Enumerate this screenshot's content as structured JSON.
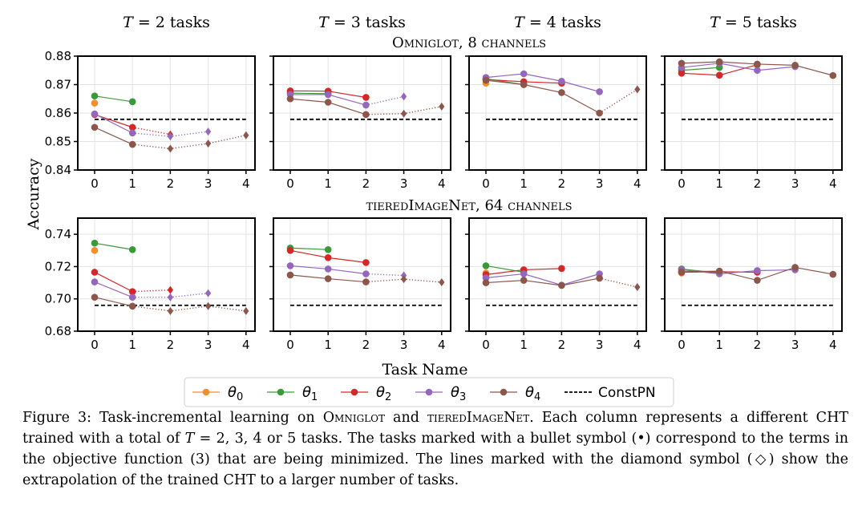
{
  "column_titles": [
    {
      "var": "T",
      "eq": " = ",
      "num": "2",
      "unit": " tasks"
    },
    {
      "var": "T",
      "eq": " = ",
      "num": "3",
      "unit": " tasks"
    },
    {
      "var": "T",
      "eq": " = ",
      "num": "4",
      "unit": " tasks"
    },
    {
      "var": "T",
      "eq": " = ",
      "num": "5",
      "unit": " tasks"
    }
  ],
  "row_titles": [
    "Omniglot, 8 channels",
    "tieredImageNet, 64 channels"
  ],
  "xlabel": "Task Name",
  "ylabel": "Accuracy",
  "legend": [
    {
      "label": "θ0",
      "base": "θ",
      "sub": "0",
      "color": "#f28e2b"
    },
    {
      "label": "θ1",
      "base": "θ",
      "sub": "1",
      "color": "#3a9a3a"
    },
    {
      "label": "θ2",
      "base": "θ",
      "sub": "2",
      "color": "#d62728"
    },
    {
      "label": "θ3",
      "base": "θ",
      "sub": "3",
      "color": "#9467bd"
    },
    {
      "label": "θ4",
      "base": "θ",
      "sub": "4",
      "color": "#8c564b"
    },
    {
      "label": "ConstPN",
      "color": "#000000"
    }
  ],
  "chart_data": [
    {
      "type": "line",
      "row": 0,
      "ylim": [
        0.84,
        0.88
      ],
      "yticks": [
        "0.84",
        "0.85",
        "0.86",
        "0.87",
        "0.88"
      ],
      "xticks": [
        "0",
        "1",
        "2",
        "3",
        "4"
      ],
      "baseline": 0.8578,
      "panels": [
        {
          "T": 2,
          "series": [
            {
              "name": "θ0",
              "values": [
                0.8635,
                null,
                null,
                null,
                null
              ]
            },
            {
              "name": "θ1",
              "values": [
                0.866,
                0.864,
                null,
                null,
                null
              ]
            },
            {
              "name": "θ2",
              "values": [
                0.8595,
                0.855,
                0.8525,
                null,
                null
              ]
            },
            {
              "name": "θ3",
              "values": [
                0.8597,
                0.853,
                0.8518,
                0.8535,
                null
              ]
            },
            {
              "name": "θ4",
              "values": [
                0.855,
                0.849,
                0.8475,
                0.8493,
                0.8522
              ]
            }
          ]
        },
        {
          "T": 3,
          "series": [
            {
              "name": "θ0",
              "values": [
                0.8675,
                null,
                null,
                null,
                null
              ]
            },
            {
              "name": "θ1",
              "values": [
                0.867,
                0.8668,
                null,
                null,
                null
              ]
            },
            {
              "name": "θ2",
              "values": [
                0.8678,
                0.8677,
                0.8655,
                null,
                null
              ]
            },
            {
              "name": "θ3",
              "values": [
                0.8665,
                0.8665,
                0.8628,
                0.8658,
                null
              ]
            },
            {
              "name": "θ4",
              "values": [
                0.865,
                0.8638,
                0.8595,
                0.8598,
                0.8623
              ]
            }
          ]
        },
        {
          "T": 4,
          "series": [
            {
              "name": "θ0",
              "values": [
                0.8705,
                null,
                null,
                null,
                null
              ]
            },
            {
              "name": "θ1",
              "values": [
                0.872,
                0.87,
                null,
                null,
                null
              ]
            },
            {
              "name": "θ2",
              "values": [
                0.8718,
                0.871,
                0.8705,
                null,
                null
              ]
            },
            {
              "name": "θ3",
              "values": [
                0.8725,
                0.8738,
                0.8712,
                0.8675,
                null
              ]
            },
            {
              "name": "θ4",
              "values": [
                0.8715,
                0.87,
                0.8672,
                0.86,
                0.8683
              ]
            }
          ]
        },
        {
          "T": 5,
          "series": [
            {
              "name": "θ0",
              "values": [
                0.8755,
                null,
                null,
                null,
                null
              ]
            },
            {
              "name": "θ1",
              "values": [
                0.875,
                0.876,
                null,
                null,
                null
              ]
            },
            {
              "name": "θ2",
              "values": [
                0.874,
                0.8733,
                0.877,
                null,
                null
              ]
            },
            {
              "name": "θ3",
              "values": [
                0.876,
                0.8775,
                0.875,
                0.8763,
                null
              ]
            },
            {
              "name": "θ4",
              "values": [
                0.8775,
                0.878,
                0.8772,
                0.8768,
                0.8732
              ]
            }
          ]
        }
      ]
    },
    {
      "type": "line",
      "row": 1,
      "ylim": [
        0.68,
        0.75
      ],
      "yticks": [
        "0.68",
        "0.70",
        "0.72",
        "0.74"
      ],
      "xticks": [
        "0",
        "1",
        "2",
        "3",
        "4"
      ],
      "baseline": 0.696,
      "panels": [
        {
          "T": 2,
          "series": [
            {
              "name": "θ0",
              "values": [
                0.73,
                null,
                null,
                null,
                null
              ]
            },
            {
              "name": "θ1",
              "values": [
                0.7345,
                0.7305,
                null,
                null,
                null
              ]
            },
            {
              "name": "θ2",
              "values": [
                0.7165,
                0.7045,
                0.7055,
                null,
                null
              ]
            },
            {
              "name": "θ3",
              "values": [
                0.7105,
                0.701,
                0.701,
                0.7035,
                null
              ]
            },
            {
              "name": "θ4",
              "values": [
                0.701,
                0.6955,
                0.6925,
                0.6955,
                0.6925
              ]
            }
          ]
        },
        {
          "T": 3,
          "series": [
            {
              "name": "θ0",
              "values": [
                0.7305,
                null,
                null,
                null,
                null
              ]
            },
            {
              "name": "θ1",
              "values": [
                0.7315,
                0.7305,
                null,
                null,
                null
              ]
            },
            {
              "name": "θ2",
              "values": [
                0.73,
                0.7255,
                0.7225,
                null,
                null
              ]
            },
            {
              "name": "θ3",
              "values": [
                0.7205,
                0.7185,
                0.7155,
                0.7145,
                null
              ]
            },
            {
              "name": "θ4",
              "values": [
                0.7148,
                0.7125,
                0.7105,
                0.7122,
                0.7103
              ]
            }
          ]
        },
        {
          "T": 4,
          "series": [
            {
              "name": "θ0",
              "values": [
                0.716,
                null,
                null,
                null,
                null
              ]
            },
            {
              "name": "θ1",
              "values": [
                0.7205,
                0.7165,
                null,
                null,
                null
              ]
            },
            {
              "name": "θ2",
              "values": [
                0.715,
                0.718,
                0.7188,
                null,
                null
              ]
            },
            {
              "name": "θ3",
              "values": [
                0.713,
                0.7155,
                0.7085,
                0.7155,
                null
              ]
            },
            {
              "name": "θ4",
              "values": [
                0.71,
                0.7115,
                0.7083,
                0.7128,
                0.7073
              ]
            }
          ]
        },
        {
          "T": 5,
          "series": [
            {
              "name": "θ0",
              "values": [
                0.716,
                null,
                null,
                null,
                null
              ]
            },
            {
              "name": "θ1",
              "values": [
                0.7185,
                0.716,
                null,
                null,
                null
              ]
            },
            {
              "name": "θ2",
              "values": [
                0.7165,
                0.7168,
                0.7165,
                null,
                null
              ]
            },
            {
              "name": "θ3",
              "values": [
                0.718,
                0.7155,
                0.7175,
                0.718,
                null
              ]
            },
            {
              "name": "θ4",
              "values": [
                0.7168,
                0.7172,
                0.7115,
                0.7195,
                0.7152
              ]
            }
          ]
        }
      ]
    }
  ],
  "caption": {
    "lead": "Figure 3:",
    "p1": " Task-incremental learning on ",
    "ds1": "Omniglot",
    "p2": " and ",
    "ds2": "tieredImageNet",
    "p3": ".  Each column represents a different CHT trained with a total of ",
    "math_T": "T",
    "p4": " = 2, 3, 4 or 5 tasks. The tasks marked with a bullet symbol (•) correspond to the terms in the objective function (3) that are being minimized. The lines marked with the diamond symbol (◇) show the extrapolation of the trained CHT to a larger number of tasks."
  }
}
